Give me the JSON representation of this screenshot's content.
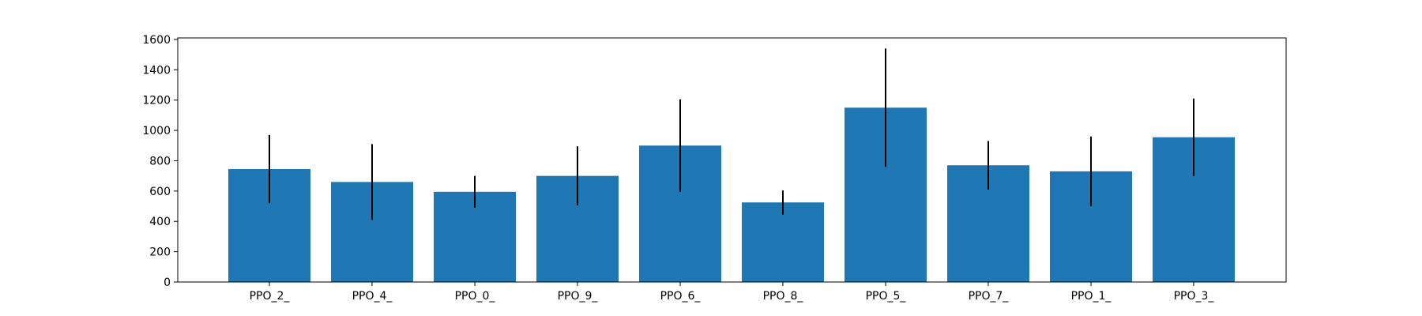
{
  "chart_data": {
    "type": "bar",
    "title": "",
    "xlabel": "",
    "ylabel": "",
    "categories": [
      "PPO_2_",
      "PPO_4_",
      "PPO_0_",
      "PPO_9_",
      "PPO_6_",
      "PPO_8_",
      "PPO_5_",
      "PPO_7_",
      "PPO_1_",
      "PPO_3_"
    ],
    "values": [
      745,
      660,
      595,
      700,
      900,
      525,
      1150,
      770,
      730,
      955
    ],
    "error": [
      225,
      250,
      105,
      195,
      305,
      80,
      390,
      160,
      230,
      255
    ],
    "ylim": [
      0,
      1610
    ],
    "yticks": [
      0,
      200,
      400,
      600,
      800,
      1000,
      1200,
      1400,
      1600
    ],
    "grid": false,
    "legend": "none",
    "bar_color": "#1f77b4",
    "error_color": "#000000"
  }
}
